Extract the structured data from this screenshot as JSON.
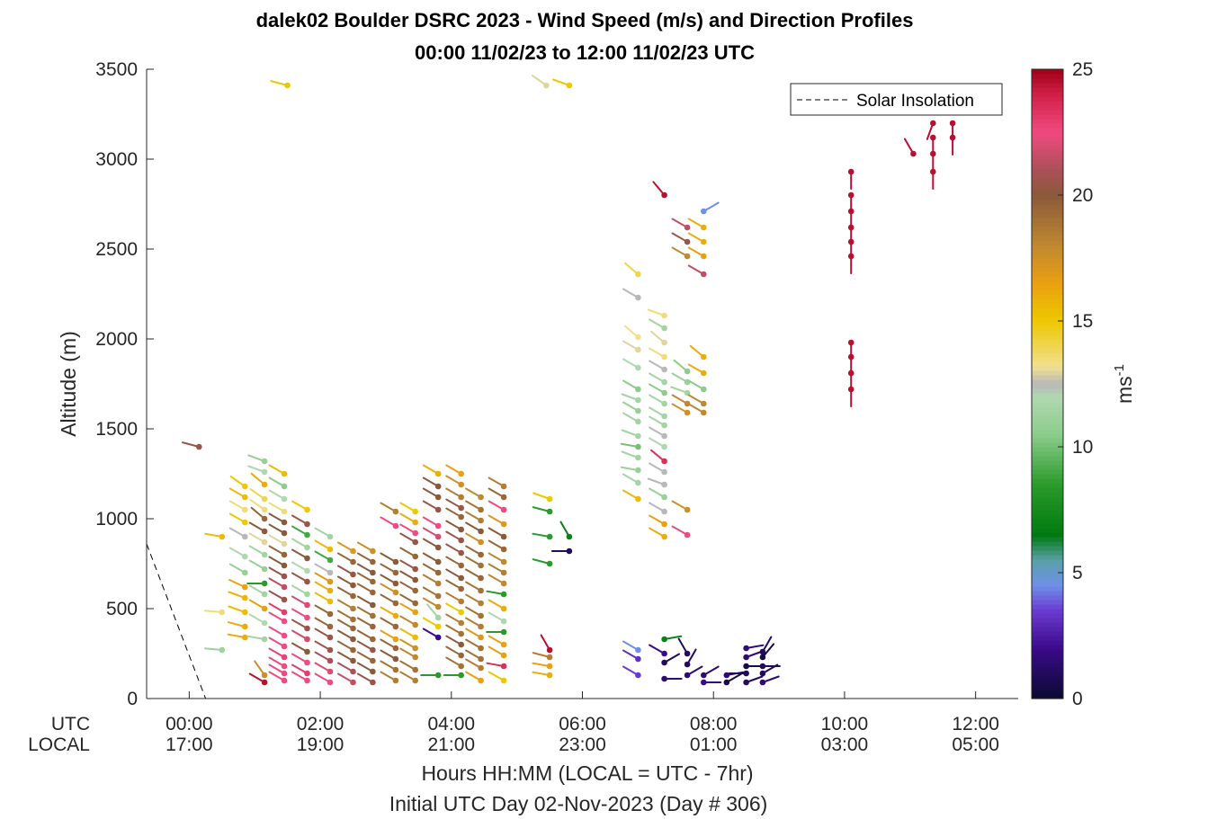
{
  "chart_data": {
    "type": "scatter",
    "title": "dalek02 Boulder DSRC 2023 - Wind Speed (m/s) and Direction Profiles",
    "subtitle": "00:00 11/02/23 to 12:00 11/02/23  UTC",
    "ylabel": "Altitude (m)",
    "xlabel": "Hours HH:MM  (LOCAL = UTC - 7hr)",
    "xlabel2": "Initial UTC Day 02-Nov-2023 (Day # 306)",
    "xlim_hours": [
      -0.65,
      12.65
    ],
    "ylim": [
      0,
      3500
    ],
    "yticks": [
      "0",
      "500",
      "1000",
      "1500",
      "2000",
      "2500",
      "3000",
      "3500"
    ],
    "x_row_labels": {
      "utc": "UTC",
      "local": "LOCAL"
    },
    "xticks_utc": [
      "00:00",
      "02:00",
      "04:00",
      "06:00",
      "08:00",
      "10:00",
      "12:00"
    ],
    "xticks_local": [
      "17:00",
      "19:00",
      "21:00",
      "23:00",
      "01:00",
      "03:00",
      "05:00"
    ],
    "legend": {
      "label": "Solar Insolation",
      "position": "top-right"
    },
    "colorbar": {
      "label": "ms-1",
      "label_base": "ms",
      "label_sup": "-1",
      "ticks": [
        "0",
        "5",
        "10",
        "15",
        "20",
        "25"
      ],
      "min": 0,
      "max": 25
    },
    "insolation_line": [
      [
        -0.65,
        860
      ],
      [
        0.25,
        0
      ],
      [
        12.65,
        0
      ]
    ],
    "colormap": [
      [
        0,
        "#0a0a30"
      ],
      [
        2,
        "#3a0a8a"
      ],
      [
        3.5,
        "#6a3bd0"
      ],
      [
        4.5,
        "#6f8fe8"
      ],
      [
        5.5,
        "#5aa0a8"
      ],
      [
        6.5,
        "#007a10"
      ],
      [
        8.5,
        "#2a9a2a"
      ],
      [
        10.5,
        "#8ccc8c"
      ],
      [
        12,
        "#b0d8b0"
      ],
      [
        12.5,
        "#b8b8b8"
      ],
      [
        13.2,
        "#f0e090"
      ],
      [
        15,
        "#eec800"
      ],
      [
        16.5,
        "#eaa010"
      ],
      [
        18,
        "#c08830"
      ],
      [
        20,
        "#8a5a3a"
      ],
      [
        21,
        "#aa5058"
      ],
      [
        22.5,
        "#f04a80"
      ],
      [
        24,
        "#d02048"
      ],
      [
        25,
        "#a00018"
      ]
    ],
    "series": [
      {
        "t": 0.15,
        "h": [
          1400
        ],
        "s": [
          20.5
        ],
        "d": [
          285
        ]
      },
      {
        "t": 0.5,
        "h": [
          270,
          480,
          900
        ],
        "s": [
          11.2,
          13.5,
          15.5
        ],
        "d": [
          275,
          275,
          280
        ]
      },
      {
        "t": 0.85,
        "h": [
          340,
          400,
          480,
          560,
          620,
          700,
          790,
          900,
          980,
          1050,
          1120,
          1180
        ],
        "s": [
          16,
          16,
          15.5,
          15.8,
          16.5,
          11,
          12,
          12.5,
          15,
          13.5,
          15.5,
          15
        ],
        "d": [
          280,
          285,
          290,
          290,
          295,
          300,
          300,
          300,
          300,
          300,
          300,
          305
        ]
      },
      {
        "t": 1.15,
        "h": [
          90,
          130,
          330,
          420,
          500,
          580,
          640,
          720,
          800,
          870,
          930,
          1000,
          1050,
          1110,
          1190,
          1260,
          1320
        ],
        "s": [
          24.5,
          17.5,
          11.5,
          12,
          16.5,
          11.5,
          8.5,
          11,
          11.5,
          13,
          20,
          19.5,
          13.5,
          14,
          16,
          12,
          11
        ],
        "d": [
          300,
          325,
          280,
          300,
          300,
          300,
          270,
          300,
          300,
          300,
          300,
          310,
          305,
          305,
          310,
          290,
          290
        ]
      },
      {
        "t": 1.45,
        "h": [
          100,
          140,
          180,
          230,
          290,
          350,
          430,
          480,
          550,
          620,
          680,
          740,
          800,
          860,
          920,
          980,
          1040,
          1110,
          1180,
          1250
        ],
        "s": [
          22.5,
          22.5,
          22.5,
          22.8,
          22.5,
          22.5,
          22.5,
          23,
          20.5,
          21.5,
          20.5,
          20,
          19.5,
          13,
          20,
          20,
          13.5,
          12,
          10.5,
          15.5
        ],
        "d": [
          300,
          300,
          300,
          300,
          300,
          300,
          300,
          300,
          300,
          300,
          300,
          300,
          300,
          300,
          300,
          300,
          300,
          300,
          300,
          300
        ]
      },
      {
        "t": 1.8,
        "h": [
          100,
          140,
          200,
          260,
          330,
          390,
          450,
          520,
          580,
          650,
          710,
          780,
          840,
          910,
          970,
          1050
        ],
        "s": [
          22.5,
          23,
          22.5,
          20,
          21.8,
          20.5,
          22.5,
          22,
          11.5,
          20.5,
          12,
          20,
          11.5,
          9,
          20.5,
          15
        ],
        "d": [
          300,
          300,
          300,
          300,
          300,
          300,
          300,
          300,
          300,
          300,
          300,
          300,
          300,
          300,
          300,
          300
        ]
      },
      {
        "t": 2.15,
        "h": [
          90,
          150,
          210,
          270,
          340,
          400,
          470,
          540,
          600,
          650,
          700,
          770,
          830,
          900
        ],
        "s": [
          22.5,
          22,
          21,
          20.5,
          20.5,
          19.5,
          19.5,
          15.5,
          16,
          17,
          12.5,
          9,
          15.5,
          11.5
        ],
        "d": [
          300,
          300,
          300,
          300,
          300,
          300,
          300,
          300,
          300,
          300,
          300,
          300,
          300,
          300
        ]
      },
      {
        "t": 2.5,
        "h": [
          90,
          150,
          210,
          270,
          330,
          390,
          440,
          500,
          570,
          630,
          690,
          760,
          820
        ],
        "s": [
          21.5,
          21,
          20,
          19.5,
          20,
          19.5,
          19,
          18.5,
          19.5,
          20,
          20.5,
          19.5,
          17
        ],
        "d": [
          300,
          300,
          300,
          300,
          300,
          300,
          300,
          300,
          300,
          300,
          300,
          300,
          300
        ]
      },
      {
        "t": 2.8,
        "h": [
          90,
          150,
          210,
          270,
          330,
          400,
          460,
          520,
          590,
          650,
          700,
          760,
          820
        ],
        "s": [
          20.5,
          20,
          19.5,
          20.5,
          19.5,
          19.5,
          19,
          20,
          19.5,
          19.5,
          20,
          19.5,
          17.5
        ],
        "d": [
          300,
          300,
          300,
          300,
          300,
          300,
          300,
          300,
          300,
          300,
          300,
          300,
          300
        ]
      },
      {
        "t": 3.15,
        "h": [
          100,
          160,
          220,
          280,
          330,
          400,
          460,
          530,
          590,
          640,
          700,
          760,
          960,
          1040
        ],
        "s": [
          18.5,
          19,
          20,
          19.5,
          16.5,
          19.5,
          16,
          19.5,
          17.5,
          20,
          19.5,
          20,
          22.5,
          18.5
        ],
        "d": [
          300,
          300,
          300,
          300,
          300,
          300,
          300,
          300,
          300,
          300,
          300,
          300,
          300,
          300
        ]
      },
      {
        "t": 3.45,
        "h": [
          100,
          160,
          230,
          280,
          340,
          410,
          480,
          530,
          600,
          660,
          720,
          790,
          870,
          920,
          980,
          1040
        ],
        "s": [
          18.5,
          19,
          18,
          17.5,
          15.5,
          18,
          16.5,
          19.5,
          19.5,
          20,
          20.5,
          19.5,
          20.5,
          22.5,
          16,
          15
        ],
        "d": [
          300,
          300,
          300,
          300,
          300,
          300,
          300,
          300,
          300,
          300,
          300,
          300,
          300,
          300,
          300,
          300
        ]
      },
      {
        "t": 3.8,
        "h": [
          130,
          340,
          400,
          450,
          510,
          570,
          640,
          700,
          760,
          840,
          900,
          960,
          1050,
          1120,
          1180,
          1250
        ],
        "s": [
          8.5,
          2,
          15,
          11.5,
          18,
          19,
          18.5,
          19.5,
          20,
          20,
          22,
          22.5,
          20.5,
          20,
          20,
          16
        ],
        "d": [
          270,
          300,
          300,
          320,
          300,
          300,
          300,
          300,
          300,
          300,
          300,
          300,
          300,
          300,
          300,
          300
        ]
      },
      {
        "t": 4.15,
        "h": [
          130,
          180,
          240,
          300,
          360,
          420,
          480,
          540,
          610,
          670,
          740,
          810,
          880,
          940,
          1010,
          1060,
          1120,
          1190,
          1250
        ],
        "s": [
          8.5,
          19,
          19.5,
          20,
          19,
          18.5,
          15,
          18.5,
          19.5,
          20,
          19.5,
          20.5,
          20.5,
          20,
          19.5,
          20.5,
          18.5,
          17.5,
          16.5
        ],
        "d": [
          270,
          300,
          300,
          300,
          300,
          300,
          300,
          300,
          300,
          300,
          300,
          300,
          300,
          300,
          300,
          300,
          300,
          300,
          300
        ]
      },
      {
        "t": 4.45,
        "h": [
          100,
          170,
          220,
          280,
          340,
          400,
          460,
          530,
          600,
          670,
          740,
          800,
          870,
          930,
          990,
          1050,
          1120
        ],
        "s": [
          16.5,
          18.5,
          19,
          19,
          17,
          18.5,
          19,
          18.5,
          19,
          19.5,
          19,
          19.5,
          17.5,
          20,
          18.5,
          19,
          18
        ],
        "d": [
          300,
          300,
          300,
          300,
          300,
          300,
          300,
          300,
          300,
          300,
          300,
          300,
          300,
          300,
          300,
          300,
          300
        ]
      },
      {
        "t": 4.8,
        "h": [
          100,
          180,
          240,
          300,
          370,
          430,
          500,
          580,
          640,
          700,
          760,
          830,
          900,
          970,
          1050,
          1120,
          1180
        ],
        "s": [
          15,
          23.5,
          16.5,
          16.5,
          8.5,
          12,
          16,
          8.5,
          18,
          18.5,
          18,
          19.5,
          20,
          17,
          22.5,
          19.5,
          18.5
        ],
        "d": [
          300,
          280,
          300,
          300,
          270,
          300,
          300,
          280,
          300,
          300,
          300,
          300,
          300,
          300,
          300,
          300,
          300
        ]
      },
      {
        "t": 5.5,
        "h": [
          130,
          180,
          230,
          270,
          750,
          900,
          1040,
          1110
        ],
        "s": [
          16,
          16.5,
          18.5,
          24.5,
          8.5,
          8.5,
          8.5,
          15
        ],
        "d": [
          280,
          280,
          285,
          330,
          285,
          280,
          285,
          290
        ]
      },
      {
        "t": 5.8,
        "h": [
          820,
          900,
          3410
        ],
        "s": [
          1,
          7,
          15
        ],
        "d": [
          270,
          330,
          290
        ]
      },
      {
        "t": 5.45,
        "h": [
          3410
        ],
        "s": [
          13
        ],
        "d": [
          305
        ]
      },
      {
        "t": 1.5,
        "h": [
          3410
        ],
        "s": [
          15
        ],
        "d": [
          285
        ]
      },
      {
        "t": 6.85,
        "h": [
          130,
          220,
          270,
          1110,
          1200,
          1270,
          1340,
          1400,
          1460,
          1540,
          1600,
          1660,
          1720,
          1840,
          1940,
          2010,
          2230,
          2360
        ],
        "s": [
          3.5,
          3.2,
          4.5,
          15.5,
          11.5,
          11,
          11.5,
          10,
          11.5,
          11.5,
          11,
          11.5,
          10.5,
          12,
          13,
          13.2,
          12.5,
          14
        ],
        "d": [
          300,
          300,
          300,
          300,
          300,
          280,
          290,
          280,
          290,
          300,
          300,
          290,
          300,
          300,
          300,
          310,
          300,
          310
        ]
      },
      {
        "t": 7.25,
        "h": [
          110,
          200,
          250,
          330,
          900,
          970,
          1040,
          1120,
          1190,
          1260,
          1320,
          1400,
          1460,
          1520,
          1570,
          1640,
          1700,
          1760,
          1830,
          1900,
          1980,
          2060,
          2130,
          2800
        ],
        "s": [
          1.5,
          1,
          2,
          7,
          16,
          16.5,
          12.5,
          11,
          12.5,
          12.5,
          23.5,
          12,
          12.5,
          11.5,
          11.5,
          11.5,
          10.5,
          11.5,
          12.5,
          13.5,
          13,
          11.5,
          13.5,
          24.5
        ],
        "d": [
          90,
          60,
          300,
          80,
          300,
          300,
          300,
          300,
          290,
          300,
          310,
          300,
          300,
          300,
          300,
          300,
          300,
          300,
          300,
          300,
          310,
          300,
          290,
          320
        ]
      },
      {
        "t": 7.6,
        "h": [
          130,
          190,
          250,
          910,
          1050,
          1590,
          1640,
          1700,
          1760,
          1820,
          2460,
          2540,
          2620
        ],
        "s": [
          1.5,
          1,
          1,
          22.5,
          17.5,
          17.5,
          18,
          11.5,
          11,
          10.5,
          18,
          20.5,
          21.5
        ],
        "d": [
          60,
          30,
          330,
          300,
          300,
          300,
          300,
          290,
          300,
          310,
          300,
          300,
          300
        ]
      },
      {
        "t": 7.85,
        "h": [
          90,
          130,
          1590,
          1640,
          1720,
          1810,
          1900,
          2360,
          2460,
          2540,
          2620,
          2710
        ],
        "s": [
          2,
          1.5,
          18,
          18,
          10.5,
          16,
          16,
          21.5,
          16.5,
          16,
          16,
          4.5
        ],
        "d": [
          90,
          60,
          300,
          300,
          300,
          300,
          310,
          300,
          300,
          300,
          300,
          60
        ]
      },
      {
        "t": 8.2,
        "h": [
          90,
          130
        ],
        "s": [
          0.5,
          1.5
        ],
        "d": [
          60,
          80
        ]
      },
      {
        "t": 8.5,
        "h": [
          90,
          140,
          180,
          230,
          280
        ],
        "s": [
          1,
          1,
          0.5,
          1.5,
          1.5
        ],
        "d": [
          70,
          270,
          90,
          70,
          80
        ]
      },
      {
        "t": 8.75,
        "h": [
          90,
          140,
          180,
          230,
          260
        ],
        "s": [
          1.5,
          1,
          1,
          0.5,
          1
        ],
        "d": [
          70,
          60,
          90,
          40,
          30
        ]
      },
      {
        "t": 10.1,
        "h": [
          1720,
          1810,
          1900,
          1980,
          2460,
          2540,
          2620,
          2710,
          2800,
          2930
        ],
        "s": [
          24.5,
          24.5,
          24.5,
          24.5,
          24.5,
          24.5,
          24.5,
          24.5,
          24.5,
          24.5
        ],
        "d": [
          180,
          180,
          180,
          180,
          180,
          180,
          180,
          180,
          180,
          180
        ]
      },
      {
        "t": 11.05,
        "h": [
          3030
        ],
        "s": [
          24.5
        ],
        "d": [
          330
        ]
      },
      {
        "t": 11.35,
        "h": [
          2930,
          3030,
          3120,
          3200
        ],
        "s": [
          24.5,
          24.5,
          24.5,
          24.5
        ],
        "d": [
          180,
          180,
          180,
          200
        ]
      },
      {
        "t": 11.65,
        "h": [
          3120,
          3200
        ],
        "s": [
          24.5,
          24.5
        ],
        "d": [
          180,
          180
        ]
      }
    ]
  }
}
